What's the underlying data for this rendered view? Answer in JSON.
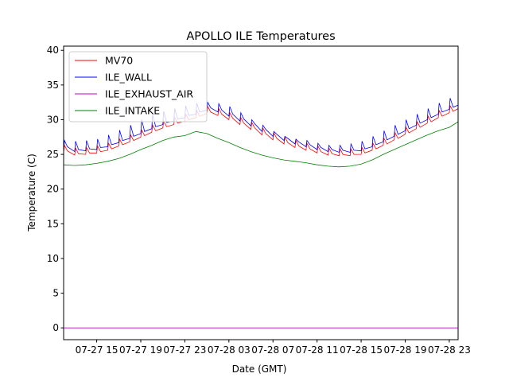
{
  "chart_data": {
    "type": "line",
    "title": "APOLLO ILE Temperatures",
    "xlabel": "Date (GMT)",
    "ylabel": "Temperature (C)",
    "x_unit": "hours since 07-27 12:00",
    "xlim": [
      0,
      35.8
    ],
    "ylim": [
      -1.7,
      40.6
    ],
    "yticks": [
      0,
      5,
      10,
      15,
      20,
      25,
      30,
      35,
      40
    ],
    "xticks": [
      {
        "x": 3,
        "label": "07-27 15"
      },
      {
        "x": 7,
        "label": "07-27 19"
      },
      {
        "x": 11,
        "label": "07-27 23"
      },
      {
        "x": 15,
        "label": "07-28 03"
      },
      {
        "x": 19,
        "label": "07-28 07"
      },
      {
        "x": 23,
        "label": "07-28 11"
      },
      {
        "x": 27,
        "label": "07-28 15"
      },
      {
        "x": 31,
        "label": "07-28 19"
      },
      {
        "x": 35,
        "label": "07-28 23"
      }
    ],
    "grid": false,
    "legend_position": "top-left",
    "x": [
      0,
      1,
      2,
      3,
      4,
      5,
      6,
      7,
      8,
      9,
      10,
      11,
      12,
      13,
      14,
      15,
      16,
      17,
      18,
      19,
      20,
      21,
      22,
      23,
      24,
      25,
      26,
      27,
      28,
      29,
      30,
      31,
      32,
      33,
      34,
      35,
      35.8
    ],
    "series": [
      {
        "name": "MV70",
        "color": "#ff0000",
        "values": [
          25.3,
          24.9,
          25.0,
          25.2,
          25.6,
          26.2,
          26.8,
          27.5,
          28.2,
          28.8,
          29.3,
          29.8,
          30.3,
          30.9,
          30.6,
          30.0,
          29.3,
          28.6,
          27.8,
          27.1,
          26.5,
          26.0,
          25.6,
          25.2,
          24.9,
          24.8,
          24.8,
          25.0,
          25.6,
          26.3,
          27.1,
          27.9,
          28.7,
          29.5,
          30.3,
          31.0,
          31.6
        ]
      },
      {
        "name": "ILE_WALL",
        "color": "#0000ff",
        "values": [
          25.8,
          25.4,
          25.5,
          25.7,
          26.1,
          26.7,
          27.3,
          28.0,
          28.7,
          29.3,
          29.8,
          30.3,
          30.8,
          31.4,
          31.1,
          30.5,
          29.8,
          29.1,
          28.3,
          27.6,
          27.0,
          26.5,
          26.1,
          25.7,
          25.4,
          25.3,
          25.3,
          25.5,
          26.1,
          26.8,
          27.6,
          28.4,
          29.2,
          30.0,
          30.8,
          31.5,
          32.1
        ],
        "peaks": [
          27.0,
          26.9,
          27.0,
          27.2,
          27.8,
          28.5,
          29.2,
          30.0,
          30.7,
          31.2,
          31.6,
          32.0,
          32.4,
          32.5,
          32.3,
          31.9,
          31.0,
          30.0,
          29.2,
          28.3,
          27.6,
          27.2,
          27.0,
          26.6,
          26.3,
          26.3,
          26.5,
          26.9,
          27.6,
          28.4,
          29.2,
          30.0,
          30.8,
          31.6,
          32.4,
          33.1,
          33.4
        ]
      },
      {
        "name": "ILE_EXHAUST_AIR",
        "color": "#bf00bf",
        "values": [
          0,
          0,
          0,
          0,
          0,
          0,
          0,
          0,
          0,
          0,
          0,
          0,
          0,
          0,
          0,
          0,
          0,
          0,
          0,
          0,
          0,
          0,
          0,
          0,
          0,
          0,
          0,
          0,
          0,
          0,
          0,
          0,
          0,
          0,
          0,
          0,
          0
        ]
      },
      {
        "name": "ILE_INTAKE",
        "color": "#008000",
        "values": [
          23.5,
          23.4,
          23.5,
          23.7,
          24.0,
          24.4,
          25.0,
          25.7,
          26.3,
          27.0,
          27.5,
          27.7,
          28.3,
          28.0,
          27.3,
          26.7,
          26.0,
          25.4,
          24.9,
          24.5,
          24.2,
          24.0,
          23.8,
          23.5,
          23.3,
          23.2,
          23.3,
          23.6,
          24.2,
          25.0,
          25.7,
          26.4,
          27.1,
          27.8,
          28.4,
          28.9,
          29.7
        ]
      }
    ]
  }
}
